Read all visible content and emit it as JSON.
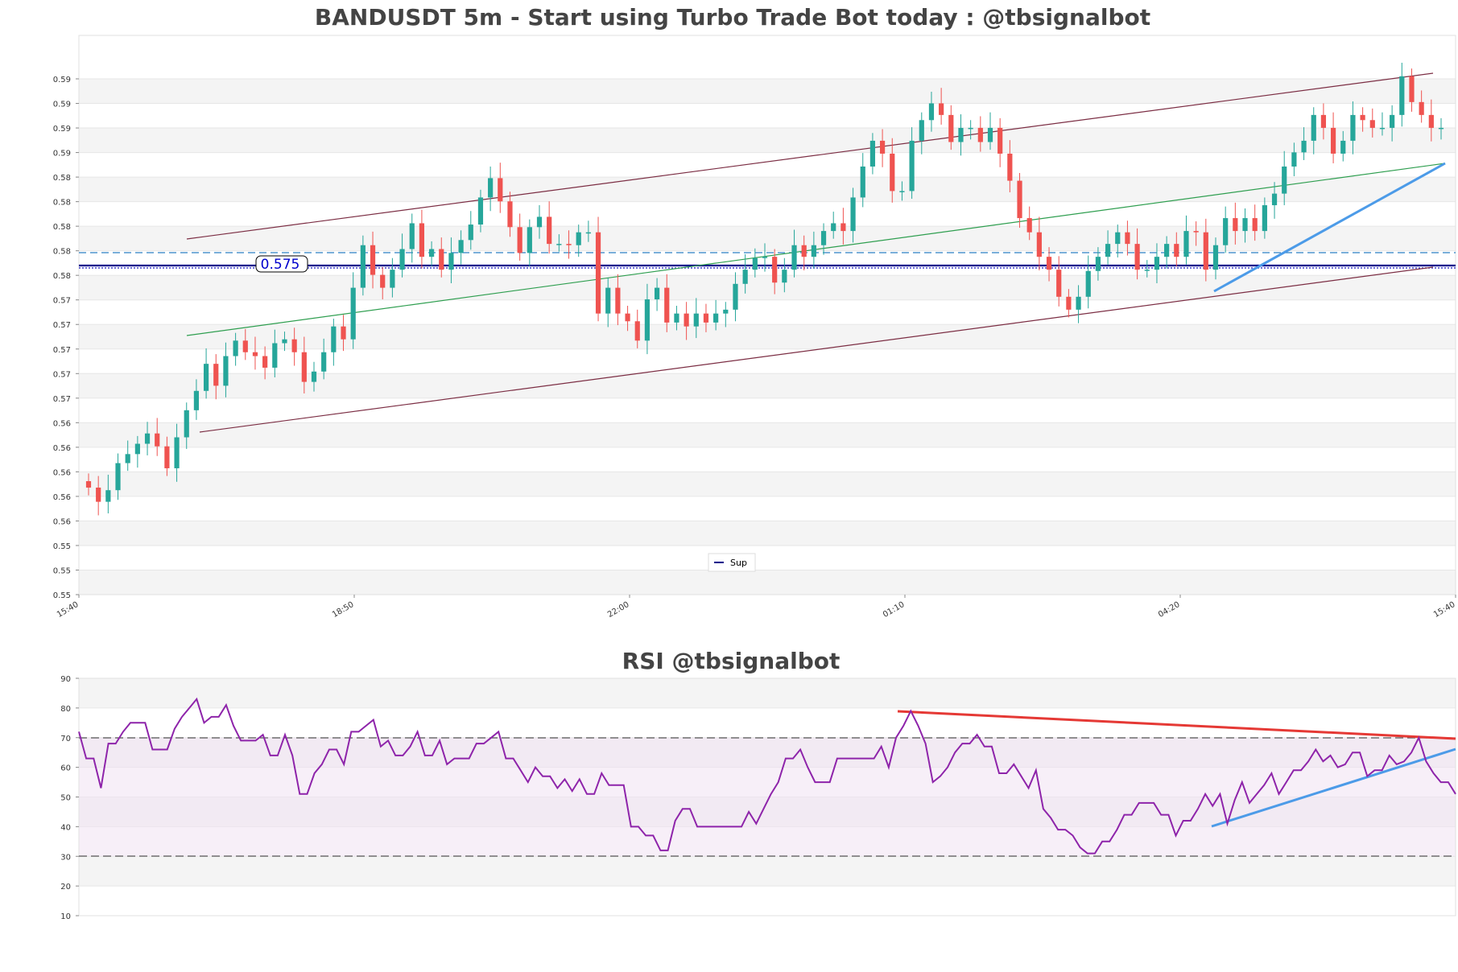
{
  "chart_data": [
    {
      "type": "candlestick",
      "title": "BANDUSDT 5m - Start using Turbo Trade Bot today : @tbsignalbot",
      "ylim": [
        0.55,
        0.59
      ],
      "y_tick_labels": [
        "0.55",
        "0.55",
        "0.55",
        "0.56",
        "0.56",
        "0.56",
        "0.56",
        "0.56",
        "0.57",
        "0.57",
        "0.57",
        "0.57",
        "0.57",
        "0.58",
        "0.58",
        "0.58",
        "0.58",
        "0.58",
        "0.59",
        "0.59",
        "0.59",
        "0.59"
      ],
      "x_tick_labels": [
        "15:40",
        "18:50",
        "22:00",
        "01:10",
        "04:20",
        "15:40"
      ],
      "price_label": "0.575",
      "legend": [
        {
          "name": "Sup",
          "color": "#00008b"
        }
      ],
      "legend_position": "bottom-center",
      "grid": true,
      "colors": {
        "up": "#26a69a",
        "down": "#ef5350",
        "channel": "#7b2d43",
        "trend": "#2e9e4f",
        "support": "#00008b",
        "dashed": "#1f77b4",
        "breakout": "#4c9be8"
      },
      "support_level": 0.575,
      "resistance_level": 0.5762,
      "close_prices": [
        0.5583,
        0.5572,
        0.5581,
        0.5602,
        0.5609,
        0.5617,
        0.5625,
        0.5615,
        0.5598,
        0.5622,
        0.5643,
        0.5658,
        0.5679,
        0.5662,
        0.5685,
        0.5697,
        0.5688,
        0.5685,
        0.5676,
        0.5695,
        0.5698,
        0.5688,
        0.5665,
        0.5673,
        0.5688,
        0.5708,
        0.5698,
        0.5738,
        0.5771,
        0.5748,
        0.5738,
        0.5752,
        0.5768,
        0.5788,
        0.5762,
        0.5768,
        0.5752,
        0.5765,
        0.5775,
        0.5787,
        0.5808,
        0.5823,
        0.5805,
        0.5785,
        0.5765,
        0.5785,
        0.5793,
        0.5772,
        0.5772,
        0.5771,
        0.5781,
        0.5781,
        0.5718,
        0.5738,
        0.5718,
        0.5712,
        0.5697,
        0.5729,
        0.5738,
        0.5711,
        0.5718,
        0.5708,
        0.5718,
        0.5711,
        0.5718,
        0.5721,
        0.5741,
        0.5752,
        0.5761,
        0.5762,
        0.5742,
        0.5752,
        0.5771,
        0.5762,
        0.5771,
        0.5782,
        0.5788,
        0.5782,
        0.5808,
        0.5832,
        0.5852,
        0.5842,
        0.5813,
        0.5813,
        0.5852,
        0.5868,
        0.5881,
        0.5872,
        0.5851,
        0.5862,
        0.5862,
        0.5851,
        0.5862,
        0.5842,
        0.5821,
        0.5792,
        0.5781,
        0.5762,
        0.5752,
        0.5731,
        0.5721,
        0.5731,
        0.5751,
        0.5762,
        0.5772,
        0.5781,
        0.5772,
        0.5752,
        0.5752,
        0.5762,
        0.5772,
        0.5762,
        0.5782,
        0.5781,
        0.5752,
        0.5771,
        0.5792,
        0.5782,
        0.5792,
        0.5782,
        0.5802,
        0.5811,
        0.5832,
        0.5843,
        0.5852,
        0.5872,
        0.5862,
        0.5842,
        0.5852,
        0.5872,
        0.5868,
        0.5862,
        0.5862,
        0.5872,
        0.5902,
        0.5882,
        0.5872,
        0.5862,
        0.5862
      ]
    },
    {
      "type": "line",
      "title": "RSI @tbsignalbot",
      "ylim": [
        10,
        90
      ],
      "y_tick_labels": [
        "10",
        "20",
        "30",
        "40",
        "50",
        "60",
        "70",
        "80",
        "90"
      ],
      "overbought": 70,
      "oversold": 30,
      "grid": true,
      "colors": {
        "line": "#8e24aa",
        "trend_red": "#e53935",
        "trend_blue": "#4c9be8",
        "band": "#ead3ef"
      },
      "values": [
        72,
        63,
        63,
        53,
        68,
        68,
        72,
        75,
        75,
        75,
        66,
        66,
        66,
        73,
        77,
        80,
        83,
        75,
        77,
        77,
        81,
        74,
        69,
        69,
        69,
        71,
        64,
        64,
        71,
        64,
        51,
        51,
        58,
        61,
        66,
        66,
        61,
        72,
        72,
        74,
        76,
        67,
        69,
        64,
        64,
        67,
        72,
        64,
        64,
        69,
        61,
        63,
        63,
        63,
        68,
        68,
        70,
        72,
        63,
        63,
        59,
        55,
        60,
        57,
        57,
        53,
        56,
        52,
        56,
        51,
        51,
        58,
        54,
        54,
        54,
        40,
        40,
        37,
        37,
        32,
        32,
        42,
        46,
        46,
        40,
        40,
        40,
        40,
        40,
        40,
        40,
        45,
        41,
        46,
        51,
        55,
        63,
        63,
        66,
        60,
        55,
        55,
        55,
        63,
        63,
        63,
        63,
        63,
        63,
        67,
        60,
        70,
        74,
        79,
        74,
        68,
        55,
        57,
        60,
        65,
        68,
        68,
        71,
        67,
        67,
        58,
        58,
        61,
        57,
        53,
        59,
        46,
        43,
        39,
        39,
        37,
        33,
        31,
        31,
        35,
        35,
        39,
        44,
        44,
        48,
        48,
        48,
        44,
        44,
        37,
        42,
        42,
        46,
        51,
        47,
        51,
        41,
        49,
        55,
        48,
        51,
        54,
        58,
        51,
        55,
        59,
        59,
        62,
        66,
        62,
        64,
        60,
        61,
        65,
        65,
        57,
        59,
        59,
        64,
        61,
        62,
        65,
        70,
        62,
        58,
        55,
        55,
        51
      ]
    }
  ]
}
